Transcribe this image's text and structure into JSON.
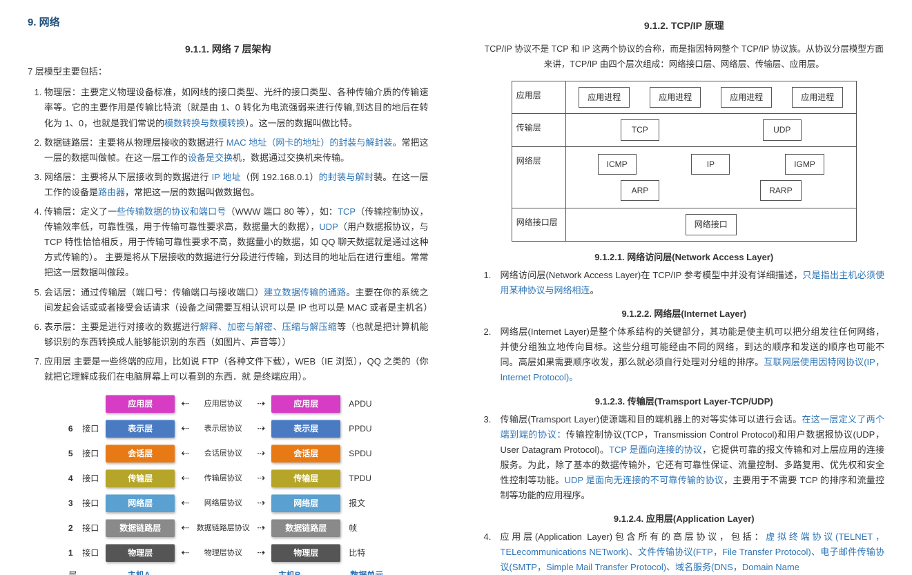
{
  "left": {
    "main_heading": "9. 网络",
    "sub_heading": "9.1.1.  网络 7 层架构",
    "intro": "7 层模型主要包括：",
    "items": [
      {
        "pre": "物理层：主要定义物理设备标准，如网线的接口类型、光纤的接口类型、各种传输介质的传输速率等。它的主要作用是传输比特流（就是由 1、0 转化为电流强弱来进行传输,到达目的地后在转化为 1、0，也就是我们常说的",
        "link": "模数转换与数模转换",
        "post": "）。这一层的数据叫做比特。"
      },
      {
        "pre": "数据链路层：主要将从物理层接收的数据进行 ",
        "link": "MAC 地址（网卡的地址）的封装与解封装",
        "post": "。常把这一层的数据叫做帧。在这一层工作的",
        "link2": "设备是交换",
        "post2": "机，数据通过交换机来传输。"
      },
      {
        "pre": "网络层：主要将从下层接收到的数据进行 ",
        "link": "IP 地址",
        "post": "（例 192.168.0.1）",
        "link2": "的封装与解封",
        "post2": "装。在这一层工作的设备是",
        "link3": "路由器",
        "post3": "，常把这一层的数据叫做数据包。"
      },
      {
        "pre": "传输层：定义了一",
        "link": "些传输数据的协议和端口号",
        "post": "（WWW 端口 80 等），如：",
        "link2": "TCP",
        "post2": "（传输控制协议，传输效率低，可靠性强，用于传输可靠性要求高，数据量大的数据），",
        "link3": "UDP",
        "post3": "（用户数据报协议，与 TCP 特性恰恰相反，用于传输可靠性要求不高，数据量小的数据，如 QQ 聊天数据就是通过这种方式传输的）。 主要是将从下层接收的数据进行分段进行传输，到达目的地址后在进行重组。常常把这一层数据叫做段。"
      },
      {
        "pre": "会话层：通过传输层（端口号：传输端口与接收端口）",
        "link": "建立数据传输的通路",
        "post": "。主要在你的系统之间发起会话或或者接受会话请求（设备之间需要互相认识可以是 IP 也可以是 MAC 或者是主机名）"
      },
      {
        "pre": "表示层：主要是进行对接收的数据进行",
        "link": "解释、加密与解密、压缩与解压缩",
        "post": "等（也就是把计算机能够识别的东西转换成人能够能识别的东西（如图片、声音等））"
      },
      {
        "pre": "应用层 主要是一些终端的应用，比如说 FTP（各种文件下载），WEB（IE 浏览），QQ 之类的（你就把它理解成我们在电脑屏幕上可以看到的东西．就 是终端应用）。",
        "link": "",
        "post": ""
      }
    ],
    "osi": {
      "layers": [
        {
          "num": "",
          "iface": "",
          "name": "应用层",
          "color": "#d63cc4",
          "proto": "应用层协议",
          "unit": "APDU"
        },
        {
          "num": "6",
          "iface": "接口",
          "name": "表示层",
          "color": "#4a7ac2",
          "proto": "表示层协议",
          "unit": "PPDU"
        },
        {
          "num": "5",
          "iface": "接口",
          "name": "会话层",
          "color": "#e87a15",
          "proto": "会话层协议",
          "unit": "SPDU"
        },
        {
          "num": "4",
          "iface": "接口",
          "name": "传输层",
          "color": "#b5a528",
          "proto": "传输层协议",
          "unit": "TPDU"
        },
        {
          "num": "3",
          "iface": "接口",
          "name": "网络层",
          "color": "#5aa0d0",
          "proto": "网络层协议",
          "unit": "报文"
        },
        {
          "num": "2",
          "iface": "接口",
          "name": "数据链路层",
          "color": "#8a8a8a",
          "proto": "数据链路层协议",
          "unit": "帧"
        },
        {
          "num": "1",
          "iface": "接口",
          "name": "物理层",
          "color": "#555555",
          "proto": "物理层协议",
          "unit": "比特"
        }
      ],
      "footer": {
        "layer": "层",
        "hostA": "主机A",
        "hostB": "主机B",
        "dataUnit": "数据单元"
      }
    }
  },
  "right": {
    "sub_heading": "9.1.2.  TCP/IP 原理",
    "intro": "TCP/IP 协议不是 TCP 和 IP 这两个协议的合称，而是指因特网整个 TCP/IP 协议族。从协议分层模型方面来讲，TCP/IP 由四个层次组成：网络接口层、网络层、传输层、应用层。",
    "diagram": {
      "rows": [
        {
          "label": "应用层",
          "nodes": [
            "应用进程",
            "应用进程",
            "应用进程",
            "应用进程"
          ]
        },
        {
          "label": "传输层",
          "nodes": [
            "TCP",
            "UDP"
          ]
        },
        {
          "label": "网络层",
          "row1": [
            "ICMP",
            "IP",
            "IGMP"
          ],
          "row2": [
            "ARP",
            "RARP"
          ]
        },
        {
          "label": "网络接口层",
          "nodes": [
            "网络接口"
          ]
        }
      ]
    },
    "sections": [
      {
        "num": "1.",
        "h": "9.1.2.1.    网络访问层(Network Access Layer)",
        "body": "网络访问层(Network Access Layer)在 TCP/IP 参考模型中并没有详细描述，",
        "link": "只是指出主机必须使用某种协议与网络相连",
        "post": "。"
      },
      {
        "num": "2.",
        "h": "9.1.2.2.    网络层(Internet Layer)",
        "body": "网络层(Internet Layer)是整个体系结构的关键部分，其功能是使主机可以把分组发往任何网络，并使分组独立地传向目标。这些分组可能经由不同的网络，到达的顺序和发送的顺序也可能不同。高层如果需要顺序收发，那么就必须自行处理对分组的排序。",
        "link": "互联网层使用因特网协议(IP，Internet Protocol)。",
        "post": ""
      },
      {
        "num": "3.",
        "h": "9.1.2.3.    传输层(Tramsport Layer-TCP/UDP)",
        "body": "传输层(Tramsport Layer)使源端和目的端机器上的对等实体可以进行会话。",
        "link": "在这一层定义了两个端到端的协议：",
        "post": "传输控制协议(TCP，Transmission Control Protocol)和用户数据报协议(UDP，User Datagram Protocol)。",
        "link2": "TCP 是面向连接的协议",
        "post2": "，它提供可靠的报文传输和对上层应用的连接服务。为此，除了基本的数据传输外，它还有可靠性保证、流量控制、多路复用、优先权和安全性控制等功能。",
        "link3": "UDP 是面向无连接的不可靠传输的协议",
        "post3": "，主要用于不需要 TCP 的排序和流量控制等功能的应用程序。"
      },
      {
        "num": "4.",
        "h": "9.1.2.4.    应用层(Application Layer)",
        "body": "应用层(Application Layer)包含所有的高层协议，包括：",
        "link": "虚拟终端协议(TELNET，TELecommunications NETwork)、文件传输协议(FTP，File Transfer Protocol)、电子邮件传输协议(SMTP，Simple Mail Transfer Protocol)、域名服务(DNS，Domain Name",
        "post": ""
      }
    ]
  }
}
